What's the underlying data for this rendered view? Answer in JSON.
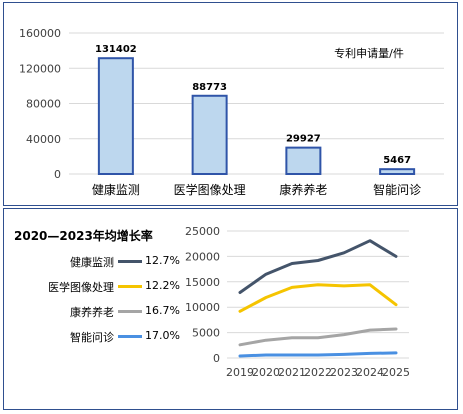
{
  "colors": {
    "bar_fill": "#bdd7ee",
    "bar_stroke": "#2f54a8",
    "grid": "#d9d9d9",
    "frame": "#2f4f8f"
  },
  "chart_data": [
    {
      "type": "bar",
      "categories": [
        "健康监测",
        "医学图像处理",
        "康养养老",
        "智能问诊"
      ],
      "values": [
        131402,
        88773,
        29927,
        5467
      ],
      "data_labels": [
        "131402",
        "88773",
        "29927",
        "5467"
      ],
      "y_ticks": [
        "0",
        "40000",
        "80000",
        "120000",
        "160000"
      ],
      "ylim": [
        0,
        160000
      ],
      "annotation": "专利申请量/件",
      "grid": true
    },
    {
      "type": "line",
      "x": [
        "2019",
        "2020",
        "2021",
        "2022",
        "2023",
        "2024",
        "2025"
      ],
      "y_ticks": [
        "0",
        "5000",
        "10000",
        "15000",
        "20000",
        "25000"
      ],
      "ylim": [
        0,
        25000
      ],
      "grid": true,
      "legend_title": "2020—2023年均增长率",
      "series": [
        {
          "name": "健康监测",
          "rate": "12.7%",
          "color": "#44546a",
          "values": [
            12900,
            16500,
            18600,
            19200,
            20700,
            23100,
            20000
          ]
        },
        {
          "name": "医学图像处理",
          "rate": "12.2%",
          "color": "#f5c400",
          "values": [
            9200,
            11900,
            13900,
            14400,
            14200,
            14400,
            10500
          ]
        },
        {
          "name": "康养养老",
          "rate": "16.7%",
          "color": "#a5a5a5",
          "values": [
            2600,
            3500,
            4000,
            4000,
            4600,
            5500,
            5700
          ]
        },
        {
          "name": "智能问诊",
          "rate": "17.0%",
          "color": "#4a90e2",
          "values": [
            400,
            600,
            600,
            600,
            700,
            900,
            1000
          ]
        }
      ]
    }
  ]
}
